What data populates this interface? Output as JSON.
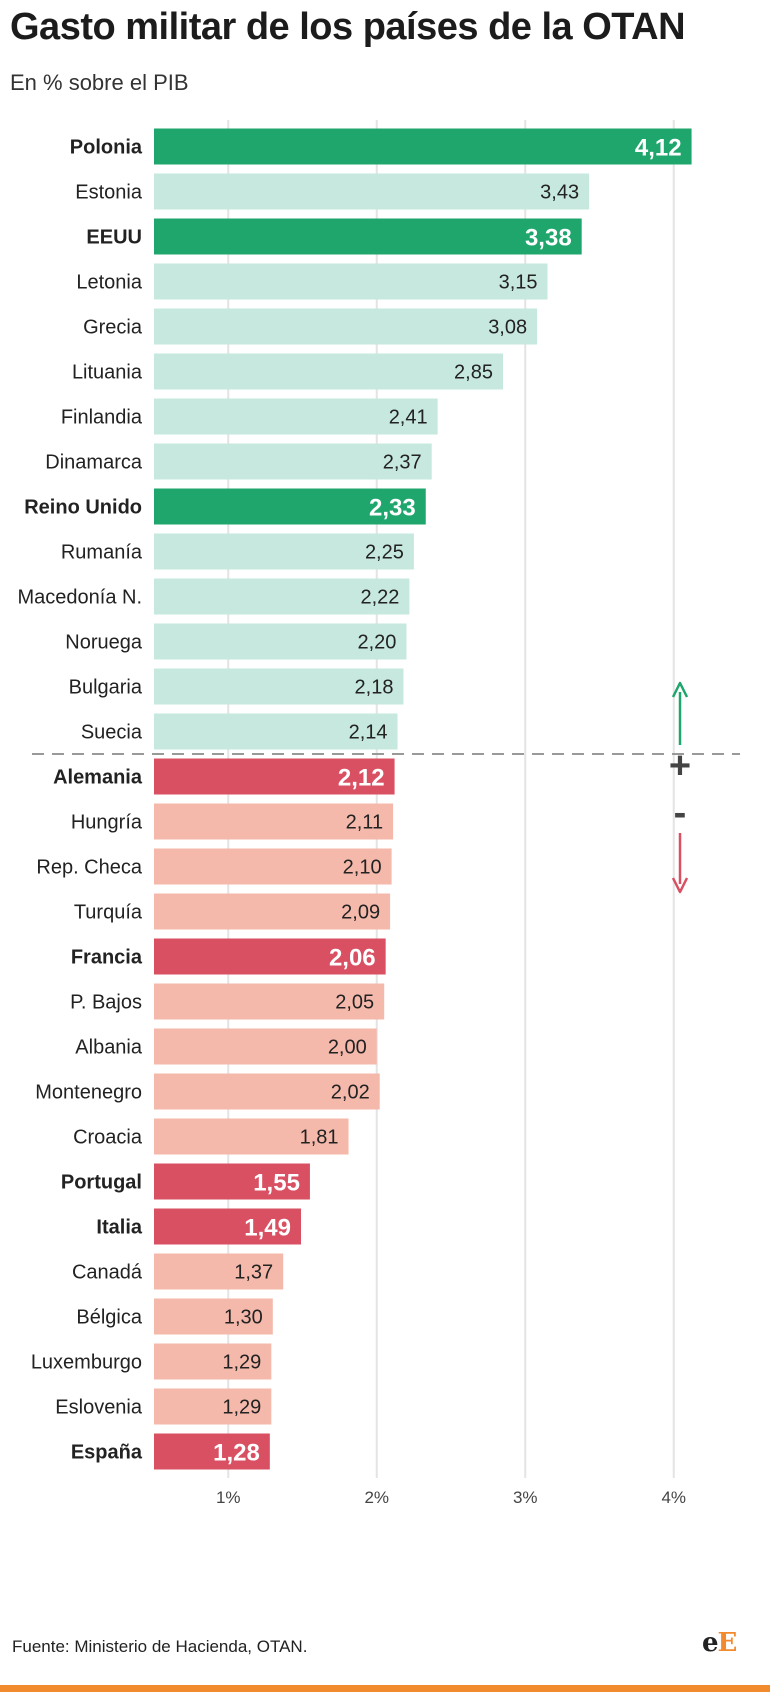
{
  "title": "Gasto militar de los países de la OTAN",
  "subtitle": "En % sobre el PIB",
  "source": "Fuente: Ministerio de Hacienda, OTAN.",
  "logo": {
    "first": "e",
    "second": "E"
  },
  "colors": {
    "above_highlight": "#1fa66d",
    "above": "#c6e8de",
    "below_highlight": "#d95063",
    "below": "#f4b9ab",
    "grid": "#e4e4e4",
    "divider": "#999999",
    "arrow_up": "#1fa66d",
    "arrow_down": "#d95063",
    "accent": "#f28a2e"
  },
  "markers": {
    "plus": "+",
    "minus": "-"
  },
  "chart_data": {
    "type": "bar",
    "orientation": "horizontal",
    "title": "Gasto militar de los países de la OTAN",
    "subtitle": "En % sobre el PIB",
    "xlim": [
      0.5,
      4.12
    ],
    "xticks": [
      1,
      2,
      3,
      4
    ],
    "xtick_labels": [
      "1%",
      "2%",
      "3%",
      "4%"
    ],
    "grid": true,
    "divider_after_index": 13,
    "categories": [
      "Polonia",
      "Estonia",
      "EEUU",
      "Letonia",
      "Grecia",
      "Lituania",
      "Finlandia",
      "Dinamarca",
      "Reino Unido",
      "Rumanía",
      "Macedonía N.",
      "Noruega",
      "Bulgaria",
      "Suecia",
      "Alemania",
      "Hungría",
      "Rep. Checa",
      "Turquía",
      "Francia",
      "P. Bajos",
      "Albania",
      "Montenegro",
      "Croacia",
      "Portugal",
      "Italia",
      "Canadá",
      "Bélgica",
      "Luxemburgo",
      "Eslovenia",
      "España"
    ],
    "values": [
      4.12,
      3.43,
      3.38,
      3.15,
      3.08,
      2.85,
      2.41,
      2.37,
      2.33,
      2.25,
      2.22,
      2.2,
      2.18,
      2.14,
      2.12,
      2.11,
      2.1,
      2.09,
      2.06,
      2.05,
      2.0,
      2.02,
      1.81,
      1.55,
      1.49,
      1.37,
      1.3,
      1.29,
      1.29,
      1.28
    ],
    "value_labels": [
      "4,12",
      "3,43",
      "3,38",
      "3,15",
      "3,08",
      "2,85",
      "2,41",
      "2,37",
      "2,33",
      "2,25",
      "2,22",
      "2,20",
      "2,18",
      "2,14",
      "2,12",
      "2,11",
      "2,10",
      "2,09",
      "2,06",
      "2,05",
      "2,00",
      "2,02",
      "1,81",
      "1,55",
      "1,49",
      "1,37",
      "1,30",
      "1,29",
      "1,29",
      "1,28"
    ],
    "highlighted": [
      "Polonia",
      "EEUU",
      "Reino Unido",
      "Alemania",
      "Francia",
      "Portugal",
      "Italia",
      "España"
    ]
  }
}
